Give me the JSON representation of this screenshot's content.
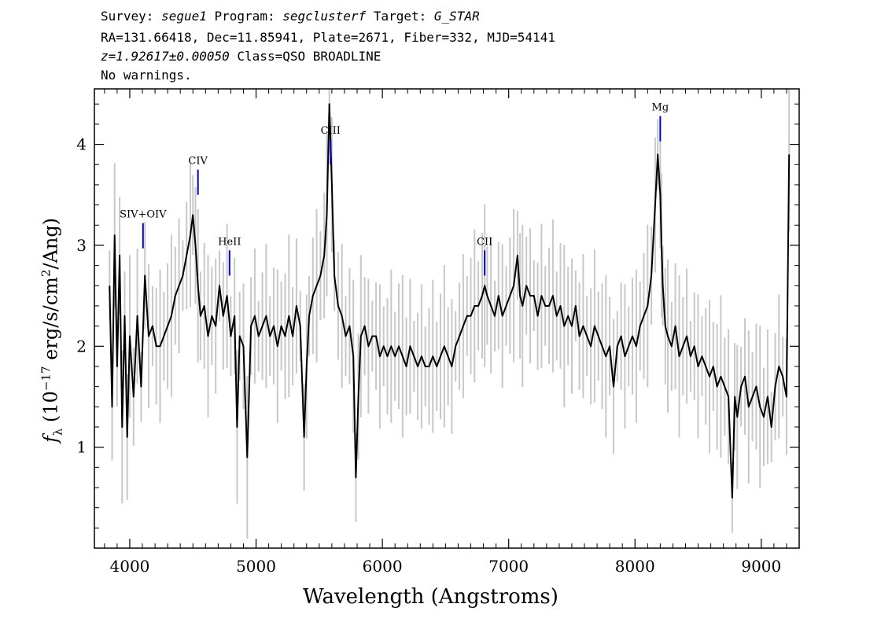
{
  "header": {
    "survey_label": "Survey:",
    "survey": "segue1",
    "program_label": "Program:",
    "program": "segclusterf",
    "target_label": "Target:",
    "target": "G_STAR",
    "line2": "RA=131.66418, Dec=11.85941, Plate=2671, Fiber=332, MJD=54141",
    "redshift": "z=1.92617±0.00050",
    "class": "Class=QSO BROADLINE",
    "warnings": "No warnings."
  },
  "chart_data": {
    "type": "line",
    "xlabel": "Wavelength (Angstroms)",
    "ylabel": "fλ (10^-17 erg/s/cm^2/Ang)",
    "xlim": [
      3720,
      9300
    ],
    "ylim": [
      0,
      4.55
    ],
    "xticks": [
      4000,
      5000,
      6000,
      7000,
      8000,
      9000
    ],
    "yticks": [
      1,
      2,
      3,
      4
    ],
    "colors": {
      "spectrum": "#000000",
      "error_band": "#c8c8c8",
      "line_marker": "#0000cc"
    },
    "series": [
      {
        "x": [
          3840,
          3860,
          3880,
          3900,
          3920,
          3940,
          3960,
          3980,
          4000,
          4030,
          4060,
          4090,
          4120,
          4150,
          4180,
          4210,
          4240,
          4270,
          4300,
          4330,
          4360,
          4390,
          4420,
          4450,
          4480,
          4500,
          4520,
          4540,
          4560,
          4590,
          4620,
          4650,
          4680,
          4710,
          4740,
          4770,
          4800,
          4830,
          4850,
          4870,
          4900,
          4930,
          4960,
          4990,
          5020,
          5050,
          5080,
          5110,
          5140,
          5170,
          5200,
          5230,
          5260,
          5290,
          5320,
          5350,
          5380,
          5400,
          5420,
          5450,
          5480,
          5510,
          5540,
          5560,
          5580,
          5600,
          5620,
          5650,
          5680,
          5710,
          5740,
          5770,
          5790,
          5810,
          5830,
          5860,
          5890,
          5920,
          5950,
          5980,
          6010,
          6040,
          6070,
          6100,
          6130,
          6160,
          6190,
          6220,
          6250,
          6280,
          6310,
          6340,
          6370,
          6400,
          6430,
          6460,
          6490,
          6520,
          6550,
          6580,
          6610,
          6640,
          6670,
          6700,
          6730,
          6760,
          6790,
          6810,
          6830,
          6860,
          6890,
          6920,
          6950,
          6980,
          7010,
          7040,
          7070,
          7090,
          7110,
          7140,
          7170,
          7200,
          7230,
          7260,
          7290,
          7320,
          7350,
          7380,
          7410,
          7440,
          7470,
          7500,
          7530,
          7560,
          7590,
          7620,
          7650,
          7680,
          7710,
          7740,
          7770,
          7800,
          7830,
          7860,
          7890,
          7920,
          7950,
          7980,
          8010,
          8040,
          8070,
          8100,
          8130,
          8160,
          8180,
          8200,
          8210,
          8220,
          8240,
          8260,
          8290,
          8320,
          8350,
          8380,
          8410,
          8440,
          8470,
          8500,
          8530,
          8560,
          8590,
          8620,
          8650,
          8680,
          8710,
          8740,
          8770,
          8790,
          8810,
          8840,
          8870,
          8900,
          8930,
          8960,
          8990,
          9020,
          9050,
          9080,
          9110,
          9140,
          9170,
          9200,
          9220
        ],
        "y": [
          2.6,
          1.4,
          3.1,
          1.8,
          2.9,
          1.2,
          2.3,
          1.1,
          2.1,
          1.5,
          2.3,
          1.6,
          2.7,
          2.1,
          2.2,
          2.0,
          2.0,
          2.1,
          2.2,
          2.3,
          2.5,
          2.6,
          2.7,
          2.9,
          3.1,
          3.3,
          3.0,
          2.6,
          2.3,
          2.4,
          2.1,
          2.3,
          2.2,
          2.6,
          2.3,
          2.5,
          2.1,
          2.3,
          1.2,
          2.1,
          2.0,
          0.9,
          2.2,
          2.3,
          2.1,
          2.2,
          2.3,
          2.1,
          2.2,
          2.0,
          2.2,
          2.1,
          2.3,
          2.1,
          2.4,
          2.2,
          1.1,
          1.8,
          2.3,
          2.5,
          2.6,
          2.7,
          2.9,
          3.3,
          4.4,
          3.6,
          2.7,
          2.4,
          2.3,
          2.1,
          2.2,
          1.9,
          0.7,
          1.5,
          2.1,
          2.2,
          2.0,
          2.1,
          2.1,
          1.9,
          2.0,
          1.9,
          2.0,
          1.9,
          2.0,
          1.9,
          1.8,
          2.0,
          1.9,
          1.8,
          1.9,
          1.8,
          1.8,
          1.9,
          1.8,
          1.9,
          2.0,
          1.9,
          1.8,
          2.0,
          2.1,
          2.2,
          2.3,
          2.3,
          2.4,
          2.4,
          2.5,
          2.6,
          2.5,
          2.4,
          2.3,
          2.5,
          2.3,
          2.4,
          2.5,
          2.6,
          2.9,
          2.5,
          2.4,
          2.6,
          2.5,
          2.5,
          2.3,
          2.5,
          2.4,
          2.4,
          2.5,
          2.3,
          2.4,
          2.2,
          2.3,
          2.2,
          2.4,
          2.1,
          2.2,
          2.1,
          2.0,
          2.2,
          2.1,
          2.0,
          1.9,
          2.0,
          1.6,
          2.0,
          2.1,
          1.9,
          2.0,
          2.1,
          2.0,
          2.2,
          2.3,
          2.4,
          2.7,
          3.4,
          3.9,
          3.5,
          3.0,
          2.6,
          2.2,
          2.1,
          2.0,
          2.2,
          1.9,
          2.0,
          2.1,
          1.9,
          2.0,
          1.8,
          1.9,
          1.8,
          1.7,
          1.8,
          1.6,
          1.7,
          1.6,
          1.5,
          0.5,
          1.5,
          1.3,
          1.6,
          1.7,
          1.4,
          1.5,
          1.6,
          1.4,
          1.3,
          1.5,
          1.2,
          1.6,
          1.8,
          1.7,
          1.5,
          3.9
        ]
      }
    ],
    "line_labels": [
      {
        "label": "SIV+OIV",
        "x": 4105,
        "y_top": 3.22,
        "y_bot": 2.97
      },
      {
        "label": "CIV",
        "x": 4540,
        "y_top": 3.75,
        "y_bot": 3.5
      },
      {
        "label": "HeII",
        "x": 4790,
        "y_top": 2.95,
        "y_bot": 2.7
      },
      {
        "label": "CIII",
        "x": 5590,
        "y_top": 4.05,
        "y_bot": 3.8
      },
      {
        "label": "CII",
        "x": 6810,
        "y_top": 2.95,
        "y_bot": 2.7
      },
      {
        "label": "Mg",
        "x": 8200,
        "y_top": 4.28,
        "y_bot": 4.03
      }
    ]
  }
}
